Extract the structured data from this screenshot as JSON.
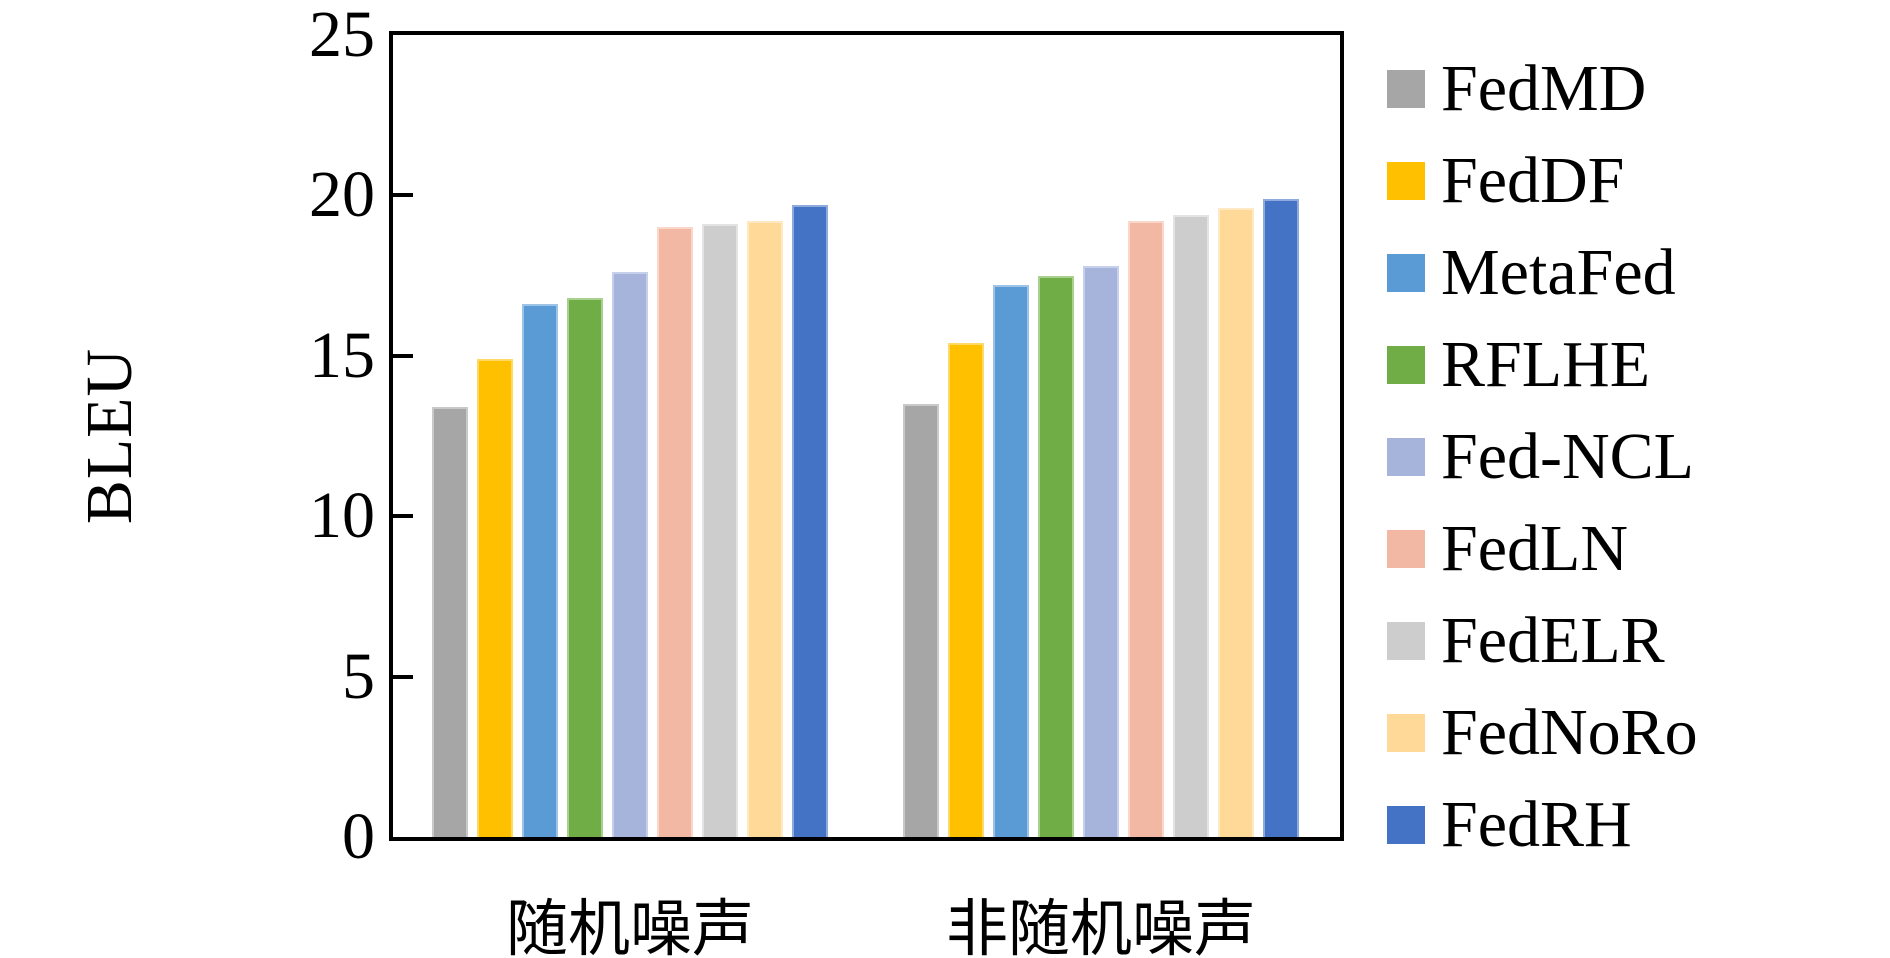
{
  "chart_data": {
    "type": "bar",
    "title": "",
    "xlabel": "",
    "ylabel": "BLEU",
    "ylim": [
      0,
      25
    ],
    "yticks": [
      0,
      5,
      10,
      15,
      20,
      25
    ],
    "grid": false,
    "legend_position": "right",
    "categories": [
      "随机噪声",
      "非随机噪声"
    ],
    "series": [
      {
        "name": "FedMD",
        "color": "#A6A6A6",
        "border_color": "#C9C9C9",
        "values": [
          13.4,
          13.5
        ]
      },
      {
        "name": "FedDF",
        "color": "#FFC000",
        "border_color": "#FFD966",
        "values": [
          14.9,
          15.4
        ]
      },
      {
        "name": "MetaFed",
        "color": "#5B9BD5",
        "border_color": "#9DC3E6",
        "values": [
          16.6,
          17.2
        ]
      },
      {
        "name": "RFLHE",
        "color": "#70AD47",
        "border_color": "#A9D18E",
        "values": [
          16.8,
          17.5
        ]
      },
      {
        "name": "Fed-NCL",
        "color": "#A6B4DC",
        "border_color": "#C6D0EC",
        "values": [
          17.6,
          17.8
        ]
      },
      {
        "name": "FedLN",
        "color": "#F3B8A3",
        "border_color": "#F9D7CB",
        "values": [
          19.0,
          19.2
        ]
      },
      {
        "name": "FedELR",
        "color": "#CDCDCD",
        "border_color": "#E3E3E3",
        "values": [
          19.1,
          19.4
        ]
      },
      {
        "name": "FedNoRo",
        "color": "#FFD998",
        "border_color": "#FFE9C5",
        "values": [
          19.2,
          19.6
        ]
      },
      {
        "name": "FedRH",
        "color": "#4472C4",
        "border_color": "#8FAADC",
        "values": [
          19.7,
          19.9
        ]
      }
    ],
    "axis_color": "#000000",
    "background_color": "#FFFFFF"
  },
  "layout_note_values_visible_only": true
}
